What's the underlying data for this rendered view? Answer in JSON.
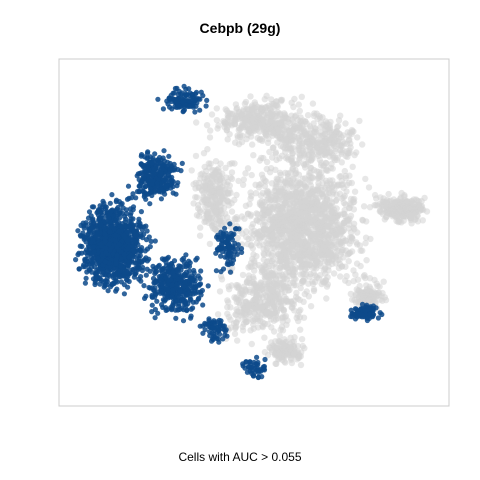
{
  "chart_data": {
    "type": "scatter",
    "title": "Cebpb (29g)",
    "caption": "Cells with AUC > 0.055",
    "xlabel": "",
    "ylabel": "",
    "xlim": [
      0,
      1
    ],
    "ylim": [
      0,
      1
    ],
    "grid": false,
    "legend": "none",
    "colors": {
      "active": "#0d4a8b",
      "inactive": "#d3d3d3",
      "frame": "#cccccc"
    },
    "series": [
      {
        "role": "inactive",
        "regions": [
          {
            "cx": 0.62,
            "cy": 0.52,
            "rx": 0.21,
            "ry": 0.26,
            "n": 1400
          },
          {
            "cx": 0.52,
            "cy": 0.82,
            "rx": 0.18,
            "ry": 0.09,
            "n": 350
          },
          {
            "cx": 0.66,
            "cy": 0.76,
            "rx": 0.14,
            "ry": 0.1,
            "n": 300
          },
          {
            "cx": 0.52,
            "cy": 0.3,
            "rx": 0.14,
            "ry": 0.15,
            "n": 350
          },
          {
            "cx": 0.88,
            "cy": 0.57,
            "rx": 0.09,
            "ry": 0.05,
            "n": 240
          },
          {
            "cx": 0.79,
            "cy": 0.32,
            "rx": 0.06,
            "ry": 0.06,
            "n": 110
          },
          {
            "cx": 0.58,
            "cy": 0.16,
            "rx": 0.07,
            "ry": 0.05,
            "n": 110
          },
          {
            "cx": 0.4,
            "cy": 0.6,
            "rx": 0.07,
            "ry": 0.16,
            "n": 250
          }
        ]
      },
      {
        "role": "active",
        "regions": [
          {
            "cx": 0.14,
            "cy": 0.46,
            "rx": 0.11,
            "ry": 0.16,
            "n": 1050
          },
          {
            "cx": 0.3,
            "cy": 0.35,
            "rx": 0.1,
            "ry": 0.11,
            "n": 380
          },
          {
            "cx": 0.25,
            "cy": 0.66,
            "rx": 0.08,
            "ry": 0.09,
            "n": 260
          },
          {
            "cx": 0.32,
            "cy": 0.88,
            "rx": 0.07,
            "ry": 0.05,
            "n": 110
          },
          {
            "cx": 0.4,
            "cy": 0.22,
            "rx": 0.05,
            "ry": 0.05,
            "n": 60
          },
          {
            "cx": 0.78,
            "cy": 0.27,
            "rx": 0.05,
            "ry": 0.03,
            "n": 90
          },
          {
            "cx": 0.5,
            "cy": 0.11,
            "rx": 0.04,
            "ry": 0.04,
            "n": 45
          },
          {
            "cx": 0.43,
            "cy": 0.46,
            "rx": 0.05,
            "ry": 0.1,
            "n": 90
          }
        ]
      }
    ]
  }
}
